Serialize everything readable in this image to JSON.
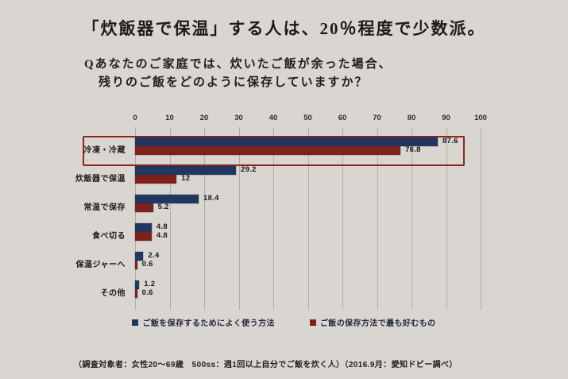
{
  "slide": {
    "title": "「炊飯器で保温」する人は、20％程度で少数派。",
    "question_line1": "Qあなたのご家庭では、炊いたご飯が余った場合、",
    "question_line2": "残りのご飯をどのように保存していますか？",
    "footnote": "（調査対象者：女性20～69歳　500ss：週1回以上自分でご飯を炊く人）（2016.9月：愛知ドビー調べ）"
  },
  "chart_data": {
    "type": "bar",
    "orientation": "horizontal",
    "categories": [
      "冷凍・冷蔵",
      "炊飯器で保温",
      "常温で保存",
      "食べ切る",
      "保温ジャーへ",
      "その他"
    ],
    "series": [
      {
        "name": "ご飯を保存するためによく使う方法",
        "color": "#21375f",
        "values": [
          87.6,
          29.2,
          18.4,
          4.8,
          2.4,
          1.2
        ],
        "value_labels": [
          "87.6",
          "29.2",
          "18.4",
          "4.8",
          "2.4",
          "1.2"
        ]
      },
      {
        "name": "ご飯の保存方法で最も好むもの",
        "color": "#7d211d",
        "values": [
          76.8,
          12,
          5.2,
          4.8,
          0.6,
          0.6
        ],
        "value_labels": [
          "76.8",
          "12",
          "5.2",
          "4.8",
          "0.6",
          "0.6"
        ]
      }
    ],
    "xlim": [
      0,
      100
    ],
    "ticks": [
      0,
      10,
      20,
      30,
      40,
      50,
      60,
      70,
      80,
      90,
      100
    ],
    "grid": true,
    "legend_position": "bottom",
    "highlighted_category": "冷凍・冷蔵",
    "highlight_border_color": "#8e2420"
  },
  "colors": {
    "background": "#ded9d4",
    "gridline": "#b3afaa",
    "bar_blue": "#21375f",
    "bar_red": "#7d211d",
    "text": "#1b1b1d"
  }
}
